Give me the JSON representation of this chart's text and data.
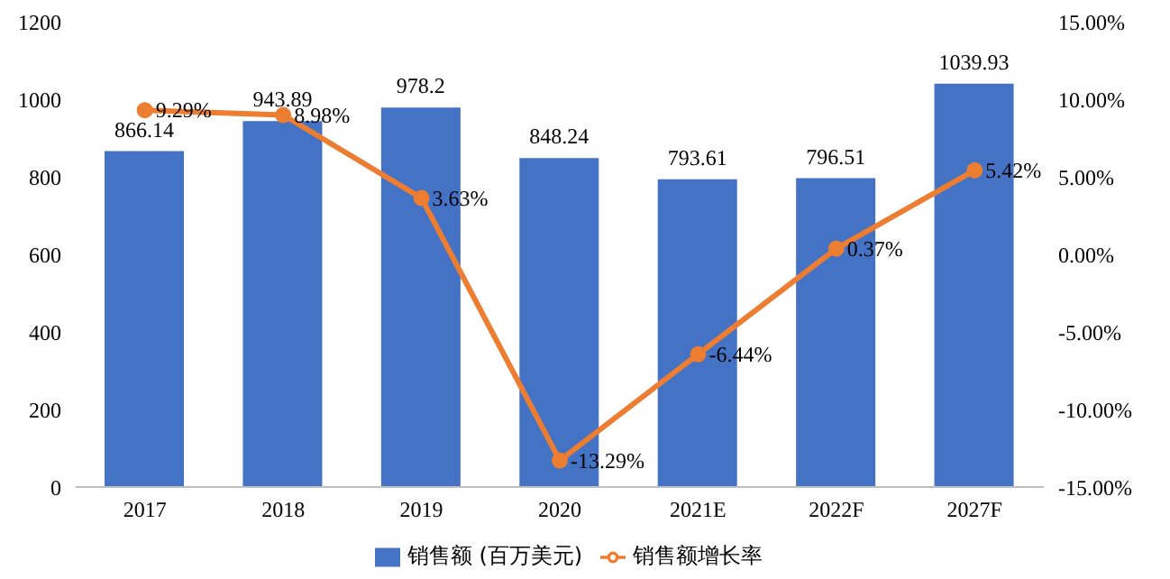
{
  "chart_data": {
    "type": "bar",
    "categories": [
      "2017",
      "2018",
      "2019",
      "2020",
      "2021E",
      "2022F",
      "2027F"
    ],
    "series": [
      {
        "name": "销售额 (百万美元)",
        "color": "#4472c4",
        "values": [
          866.14,
          943.89,
          978.2,
          848.24,
          793.61,
          796.51,
          1039.93
        ],
        "value_labels": [
          "866.14",
          "943.89",
          "978.2",
          "848.24",
          "793.61",
          "796.51",
          "1039.93"
        ]
      },
      {
        "name": "销售额增长率",
        "type": "line",
        "axis": "y2",
        "color": "#ed7d31",
        "marker": "circle",
        "values": [
          9.29,
          8.98,
          3.63,
          -13.29,
          -6.44,
          0.37,
          5.42
        ],
        "value_labels": [
          "9.29%",
          "8.98%",
          "3.63%",
          "-13.29%",
          "-6.44%",
          "0.37%",
          "5.42%"
        ]
      }
    ],
    "ylim": [
      0,
      1200
    ],
    "yticks": [
      0,
      200,
      400,
      600,
      800,
      1000,
      1200
    ],
    "y2lim": [
      -15,
      15
    ],
    "y2ticks": [
      {
        "value": -15,
        "label": "-15.00%"
      },
      {
        "value": -10,
        "label": "-10.00%"
      },
      {
        "value": -5,
        "label": "-5.00%"
      },
      {
        "value": 0,
        "label": "0.00%"
      },
      {
        "value": 5,
        "label": "5.00%"
      },
      {
        "value": 10,
        "label": "10.00%"
      },
      {
        "value": 15,
        "label": "15.00%"
      }
    ],
    "grid": false,
    "legend": "bottom"
  }
}
